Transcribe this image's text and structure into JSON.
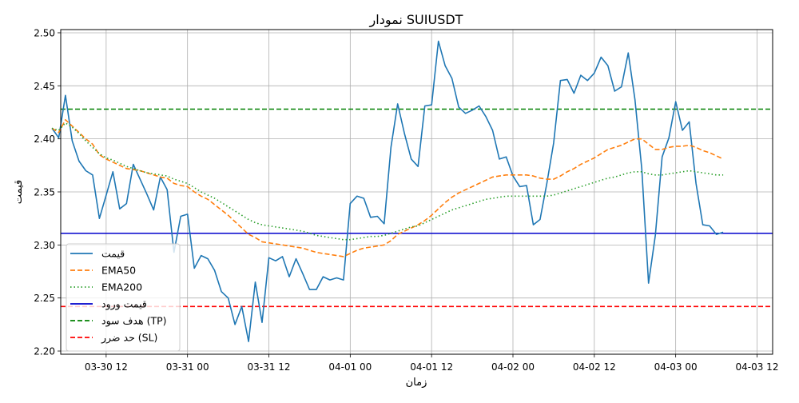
{
  "chart_data": {
    "type": "line",
    "title": "نمودار SUIUSDT",
    "xlabel": "زمان",
    "ylabel": "قیمت",
    "x_ticks": [
      "03-30 12",
      "03-31 00",
      "03-31 12",
      "04-01 00",
      "04-01 12",
      "04-02 00",
      "04-02 12",
      "04-03 00",
      "04-03 12"
    ],
    "x_tick_hours": [
      12,
      24,
      36,
      48,
      60,
      72,
      84,
      96,
      108
    ],
    "xlim": [
      5.3,
      110.3
    ],
    "y_ticks": [
      2.2,
      2.25,
      2.3,
      2.35,
      2.4,
      2.45,
      2.5
    ],
    "ylim": [
      2.197,
      2.503
    ],
    "grid": true,
    "legend_position": "lower-left",
    "x_start": "03-30 04",
    "x_step_hours": 1,
    "series": [
      {
        "name": "قیمت",
        "color": "#1f77b4",
        "style": "solid",
        "values": [
          2.41,
          2.401,
          2.441,
          2.398,
          2.379,
          2.37,
          2.366,
          2.325,
          2.347,
          2.369,
          2.334,
          2.339,
          2.376,
          2.362,
          2.348,
          2.333,
          2.364,
          2.352,
          2.293,
          2.327,
          2.329,
          2.278,
          2.29,
          2.287,
          2.276,
          2.256,
          2.25,
          2.225,
          2.242,
          2.209,
          2.265,
          2.227,
          2.288,
          2.285,
          2.289,
          2.27,
          2.287,
          2.273,
          2.258,
          2.258,
          2.27,
          2.267,
          2.269,
          2.267,
          2.339,
          2.346,
          2.344,
          2.326,
          2.327,
          2.32,
          2.392,
          2.433,
          2.405,
          2.381,
          2.374,
          2.431,
          2.432,
          2.492,
          2.469,
          2.457,
          2.43,
          2.424,
          2.427,
          2.431,
          2.421,
          2.408,
          2.381,
          2.383,
          2.365,
          2.355,
          2.356,
          2.319,
          2.324,
          2.358,
          2.396,
          2.455,
          2.456,
          2.443,
          2.46,
          2.455,
          2.462,
          2.477,
          2.469,
          2.445,
          2.449,
          2.481,
          2.437,
          2.372,
          2.264,
          2.309,
          2.383,
          2.401,
          2.435,
          2.408,
          2.416,
          2.358,
          2.319,
          2.318,
          2.31,
          2.312
        ]
      },
      {
        "name": "EMA50",
        "color": "#ff7f0e",
        "style": "dashed",
        "values": [
          2.41,
          2.406,
          2.418,
          2.412,
          2.406,
          2.4,
          2.395,
          2.385,
          2.381,
          2.378,
          2.375,
          2.372,
          2.371,
          2.37,
          2.368,
          2.366,
          2.364,
          2.363,
          2.358,
          2.356,
          2.355,
          2.35,
          2.346,
          2.343,
          2.338,
          2.333,
          2.328,
          2.322,
          2.316,
          2.31,
          2.307,
          2.303,
          2.302,
          2.301,
          2.3,
          2.299,
          2.298,
          2.297,
          2.295,
          2.293,
          2.292,
          2.291,
          2.29,
          2.289,
          2.292,
          2.295,
          2.297,
          2.298,
          2.299,
          2.3,
          2.304,
          2.31,
          2.313,
          2.316,
          2.319,
          2.323,
          2.328,
          2.334,
          2.34,
          2.345,
          2.349,
          2.352,
          2.355,
          2.358,
          2.361,
          2.364,
          2.365,
          2.366,
          2.366,
          2.366,
          2.366,
          2.365,
          2.363,
          2.362,
          2.362,
          2.365,
          2.369,
          2.372,
          2.376,
          2.379,
          2.382,
          2.386,
          2.39,
          2.392,
          2.394,
          2.397,
          2.4,
          2.4,
          2.395,
          2.39,
          2.39,
          2.392,
          2.393,
          2.393,
          2.394,
          2.392,
          2.389,
          2.387,
          2.384,
          2.381
        ]
      },
      {
        "name": "EMA200",
        "color": "#2ca02c",
        "style": "dotted",
        "values": [
          2.41,
          2.408,
          2.415,
          2.411,
          2.405,
          2.398,
          2.392,
          2.386,
          2.382,
          2.38,
          2.377,
          2.374,
          2.372,
          2.37,
          2.368,
          2.367,
          2.366,
          2.365,
          2.362,
          2.36,
          2.358,
          2.354,
          2.35,
          2.347,
          2.344,
          2.34,
          2.336,
          2.332,
          2.328,
          2.324,
          2.321,
          2.319,
          2.318,
          2.317,
          2.316,
          2.315,
          2.314,
          2.313,
          2.311,
          2.309,
          2.308,
          2.307,
          2.306,
          2.305,
          2.305,
          2.306,
          2.307,
          2.308,
          2.308,
          2.309,
          2.311,
          2.313,
          2.315,
          2.317,
          2.318,
          2.321,
          2.324,
          2.327,
          2.33,
          2.333,
          2.335,
          2.337,
          2.339,
          2.341,
          2.343,
          2.344,
          2.345,
          2.346,
          2.346,
          2.346,
          2.346,
          2.346,
          2.346,
          2.346,
          2.347,
          2.349,
          2.351,
          2.353,
          2.355,
          2.357,
          2.359,
          2.361,
          2.363,
          2.364,
          2.366,
          2.368,
          2.369,
          2.369,
          2.367,
          2.366,
          2.366,
          2.367,
          2.368,
          2.369,
          2.37,
          2.369,
          2.368,
          2.367,
          2.366,
          2.366
        ]
      }
    ],
    "hlines": [
      {
        "name": "قیمت ورود",
        "value": 2.311,
        "color": "#0000cc",
        "style": "solid"
      },
      {
        "name": "هدف سود (TP)",
        "value": 2.428,
        "color": "#008000",
        "style": "dashed"
      },
      {
        "name": "حد ضرر (SL)",
        "value": 2.242,
        "color": "#ff0000",
        "style": "dashed"
      }
    ]
  }
}
